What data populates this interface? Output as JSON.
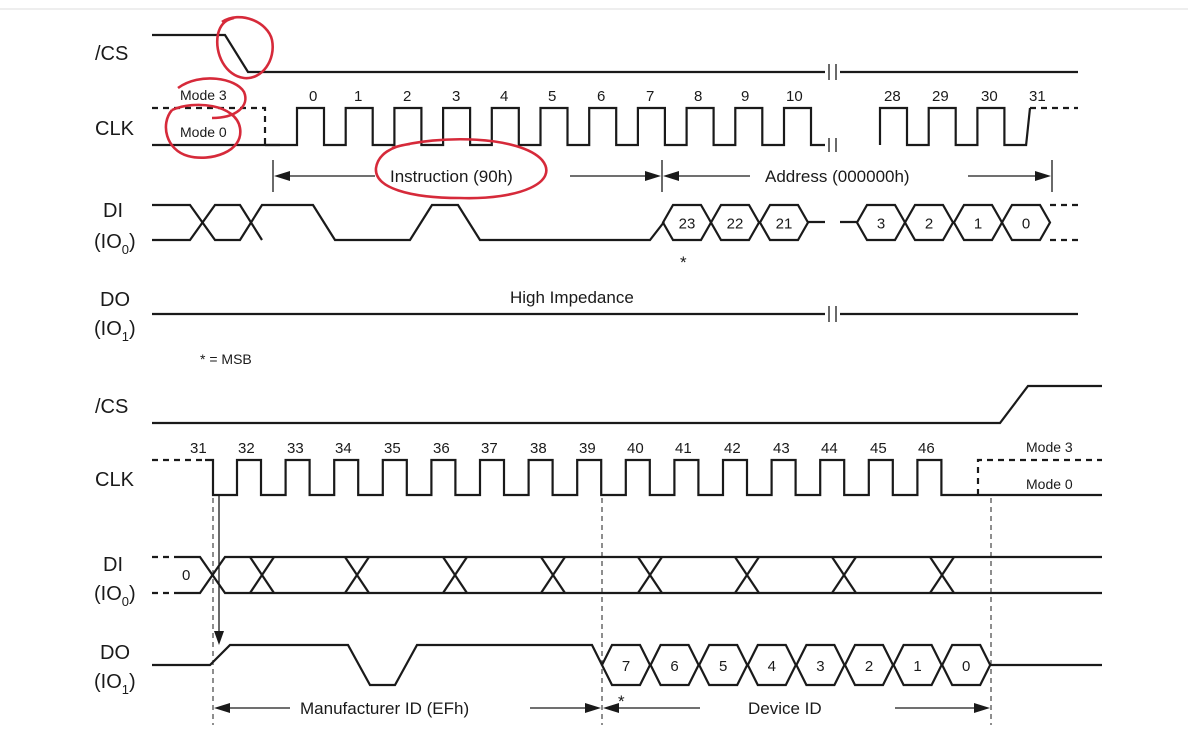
{
  "signals": {
    "cs": "/CS",
    "clk": "CLK",
    "di": "DI",
    "do": "DO",
    "io0": "(IO",
    "io0_sub": "0",
    "io1": "(IO",
    "io1_sub": "1",
    "close_paren": ")"
  },
  "modes": {
    "mode3": "Mode 3",
    "mode0": "Mode 0"
  },
  "top": {
    "clock_numbers_a": [
      "0",
      "1",
      "2",
      "3",
      "4",
      "5",
      "6",
      "7",
      "8",
      "9",
      "10"
    ],
    "clock_numbers_b": [
      "28",
      "29",
      "30",
      "31"
    ],
    "instruction_label": "Instruction (90h)",
    "address_label": "Address (000000h)",
    "di_bits_a": [
      "23",
      "22",
      "21"
    ],
    "di_bits_b": [
      "3",
      "2",
      "1",
      "0"
    ],
    "high_impedance": "High Impedance",
    "msb_star": "*",
    "msb_note": "* = MSB"
  },
  "bottom": {
    "clock_numbers": [
      "31",
      "32",
      "33",
      "34",
      "35",
      "36",
      "37",
      "38",
      "39",
      "40",
      "41",
      "42",
      "43",
      "44",
      "45",
      "46"
    ],
    "di_bit": "0",
    "do_bits": [
      "7",
      "6",
      "5",
      "4",
      "3",
      "2",
      "1",
      "0"
    ],
    "manufacturer_label": "Manufacturer ID (EFh)",
    "device_label": "Device ID",
    "msb_star": "*"
  },
  "annotation_color": "#d62a3a"
}
